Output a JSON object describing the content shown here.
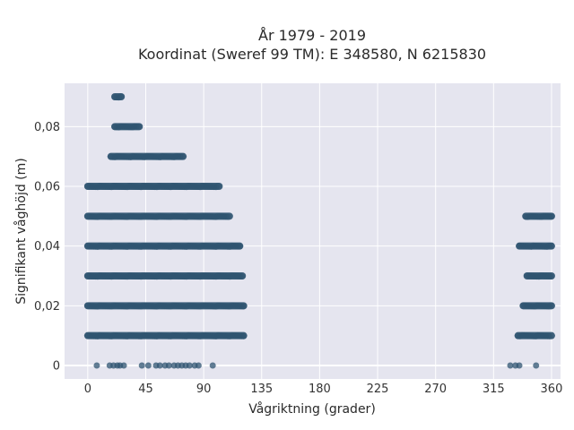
{
  "chart_data": {
    "type": "scatter",
    "title": "År 1979 - 2019",
    "subtitle": "Koordinat (Sweref 99 TM): E 348580, N 6215830",
    "xlabel": "Vågriktning (grader)",
    "ylabel": "Signifikant våghöjd (m)",
    "xlim": [
      -18,
      367
    ],
    "ylim": [
      -0.0045,
      0.0945
    ],
    "x_ticks": [
      0,
      45,
      90,
      135,
      180,
      225,
      270,
      315,
      360
    ],
    "x_tick_labels": [
      "0",
      "45",
      "90",
      "135",
      "180",
      "225",
      "270",
      "315",
      "360"
    ],
    "y_ticks": [
      0,
      0.02,
      0.04,
      0.06,
      0.08
    ],
    "y_tick_labels": [
      "0",
      "0,02",
      "0,04",
      "0,06",
      "0,08"
    ],
    "grid": true,
    "background": "#e5e5ef",
    "marker_color": "#2e5370",
    "bands": [
      {
        "y": 0.09,
        "ranges": [
          [
            21,
            26
          ]
        ]
      },
      {
        "y": 0.08,
        "ranges": [
          [
            21,
            40
          ]
        ]
      },
      {
        "y": 0.07,
        "ranges": [
          [
            18,
            74
          ]
        ]
      },
      {
        "y": 0.06,
        "ranges": [
          [
            0,
            102
          ]
        ]
      },
      {
        "y": 0.05,
        "ranges": [
          [
            0,
            110
          ],
          [
            340,
            360
          ]
        ]
      },
      {
        "y": 0.04,
        "ranges": [
          [
            0,
            118
          ],
          [
            335,
            360
          ]
        ]
      },
      {
        "y": 0.03,
        "ranges": [
          [
            0,
            120
          ],
          [
            341,
            360
          ]
        ]
      },
      {
        "y": 0.02,
        "ranges": [
          [
            0,
            121
          ],
          [
            338,
            360
          ]
        ]
      },
      {
        "y": 0.01,
        "ranges": [
          [
            0,
            121
          ],
          [
            334,
            360
          ]
        ]
      }
    ],
    "scatter_points": [
      {
        "x": 7,
        "y": 0
      },
      {
        "x": 17,
        "y": 0
      },
      {
        "x": 20,
        "y": 0
      },
      {
        "x": 23,
        "y": 0
      },
      {
        "x": 25,
        "y": 0
      },
      {
        "x": 28,
        "y": 0
      },
      {
        "x": 42,
        "y": 0
      },
      {
        "x": 47,
        "y": 0
      },
      {
        "x": 53,
        "y": 0
      },
      {
        "x": 56,
        "y": 0
      },
      {
        "x": 60,
        "y": 0
      },
      {
        "x": 63,
        "y": 0
      },
      {
        "x": 67,
        "y": 0
      },
      {
        "x": 70,
        "y": 0
      },
      {
        "x": 73,
        "y": 0
      },
      {
        "x": 76,
        "y": 0
      },
      {
        "x": 79,
        "y": 0
      },
      {
        "x": 83,
        "y": 0
      },
      {
        "x": 86,
        "y": 0
      },
      {
        "x": 97,
        "y": 0
      },
      {
        "x": 328,
        "y": 0
      },
      {
        "x": 332,
        "y": 0
      },
      {
        "x": 335,
        "y": 0
      },
      {
        "x": 348,
        "y": 0
      }
    ]
  }
}
